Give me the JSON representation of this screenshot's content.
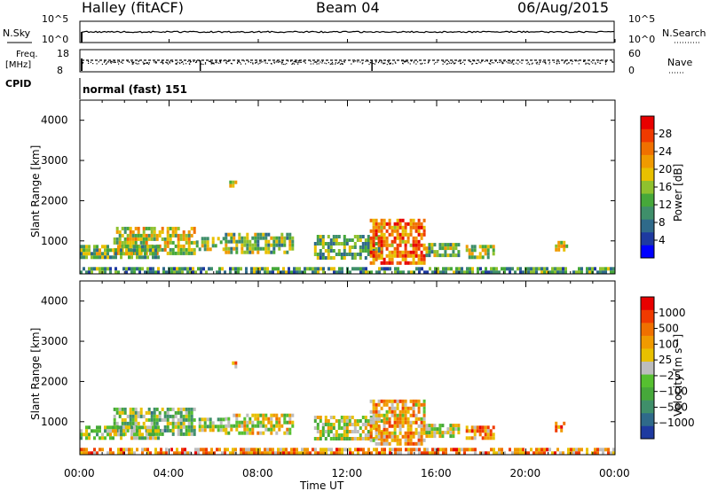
{
  "header": {
    "station": "Halley (fitACF)",
    "beam": "Beam 04",
    "date": "06/Aug/2015"
  },
  "labels": {
    "nsky": "N.Sky",
    "nsearch": "N.Search",
    "freq": "Freq.",
    "mhz": "[MHz]",
    "nave": "Nave",
    "cpid": "CPID",
    "cpid_value": "normal (fast) 151",
    "time_axis": "Time UT"
  },
  "colors": {
    "frame": "#000000",
    "power_scale": [
      "#0000ff",
      "#1e3aa0",
      "#2f6a8a",
      "#3f8f6a",
      "#46a83a",
      "#8fc12e",
      "#e8c000",
      "#f09a00",
      "#f07000",
      "#f03a00",
      "#e80000"
    ],
    "velocity_scale": [
      "#1e3aa0",
      "#2f6a8a",
      "#3f8f6a",
      "#46a83a",
      "#56c030",
      "#bdbdbd",
      "#e8c000",
      "#f09a00",
      "#f07000",
      "#f03a00",
      "#e80000"
    ]
  },
  "chart_data": [
    {
      "type": "line",
      "panel": "noise",
      "left_label": "N.Sky",
      "right_label": "N.Search",
      "left_ticks": [
        "10^5",
        "10^0"
      ],
      "right_ticks": [
        "10^5",
        "10^0"
      ],
      "x": [
        "00:00",
        "04:00",
        "08:00",
        "12:00",
        "16:00",
        "20:00",
        "00:00"
      ],
      "series": []
    },
    {
      "type": "scatter",
      "panel": "frequency",
      "left_label": "Freq. [MHz]",
      "right_label": "Nave",
      "left_ticks": [
        "18",
        "8"
      ],
      "right_ticks": [
        "60",
        "0"
      ],
      "series": []
    },
    {
      "type": "heatmap",
      "panel": "power",
      "ylabel": "Slant Range [km]",
      "colorbar_label": "Power [dB]",
      "colorbar_ticks": [
        "28",
        "24",
        "20",
        "16",
        "12",
        "8",
        "4"
      ],
      "yticks": [
        "4000",
        "3000",
        "2000",
        "1000"
      ],
      "ylim": [
        180,
        4500
      ],
      "xlim": [
        0,
        24
      ],
      "xticks": [
        "00:00",
        "04:00",
        "08:00",
        "12:00",
        "16:00",
        "20:00",
        "00:00"
      ],
      "regions": [
        {
          "t": [
            1.5,
            5.2
          ],
          "r": [
            650,
            1350
          ],
          "level": 0.55
        },
        {
          "t": [
            0.0,
            3.5
          ],
          "r": [
            600,
            900
          ],
          "level": 0.45
        },
        {
          "t": [
            5.2,
            6.5
          ],
          "r": [
            780,
            1100
          ],
          "level": 0.5
        },
        {
          "t": [
            6.5,
            9.5
          ],
          "r": [
            700,
            1200
          ],
          "level": 0.45
        },
        {
          "t": [
            10.5,
            13.5
          ],
          "r": [
            600,
            1150
          ],
          "level": 0.4
        },
        {
          "t": [
            13.0,
            15.5
          ],
          "r": [
            450,
            1550
          ],
          "level": 0.75
        },
        {
          "t": [
            15.5,
            17.0
          ],
          "r": [
            650,
            950
          ],
          "level": 0.45
        },
        {
          "t": [
            17.3,
            18.5
          ],
          "r": [
            550,
            900
          ],
          "level": 0.5
        },
        {
          "t": [
            21.3,
            21.8
          ],
          "r": [
            750,
            1000
          ],
          "level": 0.6
        },
        {
          "t": [
            0.0,
            24.0
          ],
          "r": [
            180,
            350
          ],
          "level": 0.35
        },
        {
          "t": [
            6.7,
            6.95
          ],
          "r": [
            2350,
            2500
          ],
          "level": 0.55
        }
      ]
    },
    {
      "type": "heatmap",
      "panel": "velocity",
      "ylabel": "Slant Range [km]",
      "colorbar_label": "Velocity [m s⁻¹]",
      "colorbar_ticks": [
        "1000",
        "500",
        "100",
        "25",
        "−25",
        "−100",
        "−500",
        "−1000"
      ],
      "yticks": [
        "4000",
        "3000",
        "2000",
        "1000"
      ],
      "ylim": [
        180,
        4500
      ],
      "xlim": [
        0,
        24
      ],
      "xticks": [
        "00:00",
        "04:00",
        "08:00",
        "12:00",
        "16:00",
        "20:00",
        "00:00"
      ],
      "regions": [
        {
          "t": [
            1.5,
            5.2
          ],
          "r": [
            650,
            1350
          ],
          "level": 0.4
        },
        {
          "t": [
            0.0,
            3.5
          ],
          "r": [
            600,
            900
          ],
          "level": 0.45
        },
        {
          "t": [
            5.2,
            6.5
          ],
          "r": [
            780,
            1100
          ],
          "level": 0.45
        },
        {
          "t": [
            6.5,
            9.5
          ],
          "r": [
            700,
            1200
          ],
          "level": 0.55
        },
        {
          "t": [
            10.5,
            13.5
          ],
          "r": [
            600,
            1150
          ],
          "level": 0.5
        },
        {
          "t": [
            13.0,
            15.5
          ],
          "r": [
            450,
            1550
          ],
          "level": 0.65
        },
        {
          "t": [
            15.5,
            17.0
          ],
          "r": [
            650,
            950
          ],
          "level": 0.5
        },
        {
          "t": [
            17.3,
            18.5
          ],
          "r": [
            550,
            900
          ],
          "level": 0.7
        },
        {
          "t": [
            21.3,
            21.8
          ],
          "r": [
            750,
            1000
          ],
          "level": 0.75
        },
        {
          "t": [
            0.0,
            24.0
          ],
          "r": [
            180,
            350
          ],
          "level": 0.7
        },
        {
          "t": [
            6.7,
            6.95
          ],
          "r": [
            2350,
            2500
          ],
          "level": 0.7
        }
      ]
    }
  ]
}
